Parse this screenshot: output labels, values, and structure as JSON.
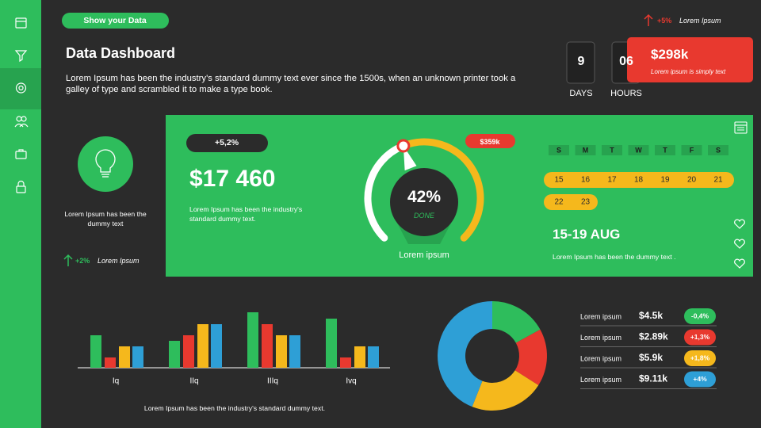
{
  "header": {
    "button": "Show your Data",
    "title": "Data Dashboard",
    "description": "Lorem Ipsum has been the industry's standard dummy text ever since the 1500s, when an unknown printer took a galley of type and scrambled it to make a type book."
  },
  "top_right": {
    "trend": "+5%",
    "trend_text": "Lorem Ipsum",
    "countdown": [
      {
        "value": "9",
        "label": "DAYS"
      },
      {
        "value": "06",
        "label": "HOURS"
      }
    ],
    "price": "$298k",
    "price_text": "Lorem ipsum is simply text"
  },
  "idea": {
    "text": "Lorem Ipsum has been the dummy text",
    "trend": "+2%",
    "trend_text": "Lorem Ipsum"
  },
  "revenue": {
    "badge": "+5,2%",
    "value": "$17 460",
    "text": "Lorem Ipsum has been the industry's standard dummy text."
  },
  "calendar": {
    "weekdays": [
      "S",
      "M",
      "T",
      "W",
      "T",
      "F",
      "S"
    ],
    "weeks": [
      [
        "15",
        "16",
        "17",
        "18",
        "19",
        "20",
        "21"
      ],
      [
        "22",
        "23"
      ]
    ],
    "range": "15-19 AUG",
    "text": "Lorem Ipsum has been the dummy text ."
  },
  "stats": [
    {
      "label": "Lorem ipsum",
      "value": "$4.5k",
      "change": "-0,4%",
      "color": "#2ebd5c"
    },
    {
      "label": "Lorem ipsum",
      "value": "$2.89k",
      "change": "+1,3%",
      "color": "#e8392f"
    },
    {
      "label": "Lorem ipsum",
      "value": "$5.9k",
      "change": "+1,8%",
      "color": "#f5b81c"
    },
    {
      "label": "Lorem ipsum",
      "value": "$9.11k",
      "change": "+4%",
      "color": "#2e9fd6"
    }
  ],
  "chart_data": [
    {
      "type": "gauge",
      "value": 42,
      "value_label": "42%",
      "ylim": [
        0,
        100
      ],
      "status": "DONE",
      "tag": "$359k",
      "caption": "Lorem ipsum",
      "colors": [
        "#ffffff",
        "#f5b81c"
      ]
    },
    {
      "type": "bar",
      "categories": [
        "Iq",
        "IIq",
        "IIIq",
        "Ivq"
      ],
      "series": [
        {
          "color": "#2ebd5c",
          "values": [
            41,
            34,
            70,
            62
          ]
        },
        {
          "color": "#e8392f",
          "values": [
            13,
            41,
            55,
            13
          ]
        },
        {
          "color": "#f5b81c",
          "values": [
            27,
            55,
            41,
            27
          ]
        },
        {
          "color": "#2e9fd6",
          "values": [
            27,
            55,
            41,
            27
          ]
        }
      ],
      "caption": "Lorem Ipsum has been the industry's standard dummy text."
    },
    {
      "type": "pie",
      "donut": true,
      "values": [
        17,
        17,
        22,
        44
      ],
      "colors": [
        "#2ebd5c",
        "#e8392f",
        "#f5b81c",
        "#2e9fd6"
      ]
    }
  ]
}
